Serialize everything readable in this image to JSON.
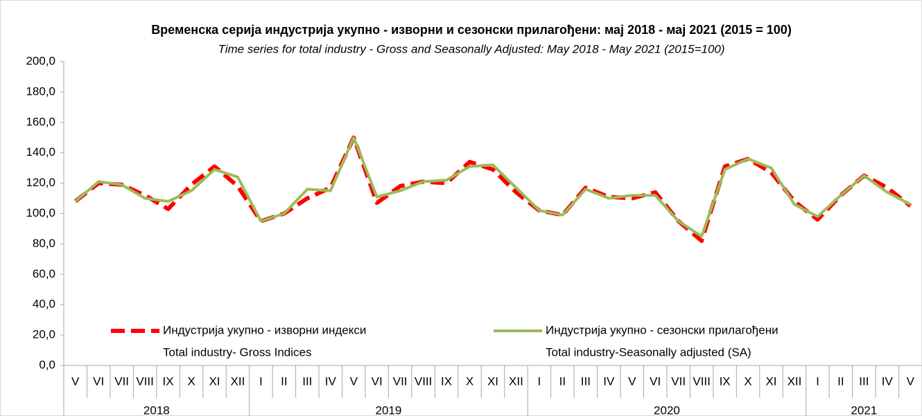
{
  "chart_data": {
    "type": "line",
    "title": "Временска серија индустрија укупно - изворни и сезонски прилагођени: мај 2018 - мај 2021 (2015 = 100)",
    "subtitle": "Time series for total industry - Gross and Seasonally Adjusted: May 2018 - May 2021 (2015=100)",
    "categories": [
      "V",
      "VI",
      "VII",
      "VIII",
      "IX",
      "X",
      "XI",
      "XII",
      "I",
      "II",
      "III",
      "IV",
      "V",
      "VI",
      "VII",
      "VIII",
      "IX",
      "X",
      "XI",
      "XII",
      "I",
      "II",
      "III",
      "IV",
      "V",
      "VI",
      "VII",
      "VIII",
      "IX",
      "X",
      "XI",
      "XII",
      "I",
      "II",
      "III",
      "IV",
      "V"
    ],
    "years": [
      "2018",
      "2019",
      "2020",
      "2021"
    ],
    "series": [
      {
        "name": "Индустрија укупно - изворни индекси",
        "name_en": "Total industry- Gross Indices",
        "color": "#ff0000",
        "dashed": true,
        "values": [
          108,
          120,
          119,
          112,
          103,
          119,
          131,
          118,
          95,
          100,
          110,
          117,
          150,
          107,
          118,
          121,
          120,
          134,
          129,
          114,
          102,
          99,
          117,
          111,
          110,
          114,
          95,
          82,
          131,
          136,
          127,
          108,
          96,
          112,
          125,
          117,
          105
        ]
      },
      {
        "name": "Индустрија укупно - сезонски прилагођени",
        "name_en": "Total industry-Seasonally adjusted (SA)",
        "color": "#9bbb59",
        "dashed": false,
        "values": [
          108,
          121,
          119,
          110,
          108,
          115,
          129,
          124,
          95,
          100,
          116,
          115,
          150,
          111,
          115,
          121,
          122,
          131,
          132,
          117,
          102,
          99,
          116,
          110,
          112,
          112,
          95,
          85,
          129,
          136,
          130,
          106,
          98,
          112,
          125,
          114,
          106
        ]
      }
    ],
    "ylim": [
      0,
      200
    ],
    "yticks": [
      {
        "value": 0,
        "label": "0,0"
      },
      {
        "value": 20,
        "label": "20,0"
      },
      {
        "value": 40,
        "label": "40,0"
      },
      {
        "value": 60,
        "label": "60,0"
      },
      {
        "value": 80,
        "label": "80,0"
      },
      {
        "value": 100,
        "label": "100,0"
      },
      {
        "value": 120,
        "label": "120,0"
      },
      {
        "value": 140,
        "label": "140,0"
      },
      {
        "value": 160,
        "label": "160,0"
      },
      {
        "value": 180,
        "label": "180,0"
      },
      {
        "value": 200,
        "label": "200,0"
      }
    ],
    "grid": false
  }
}
